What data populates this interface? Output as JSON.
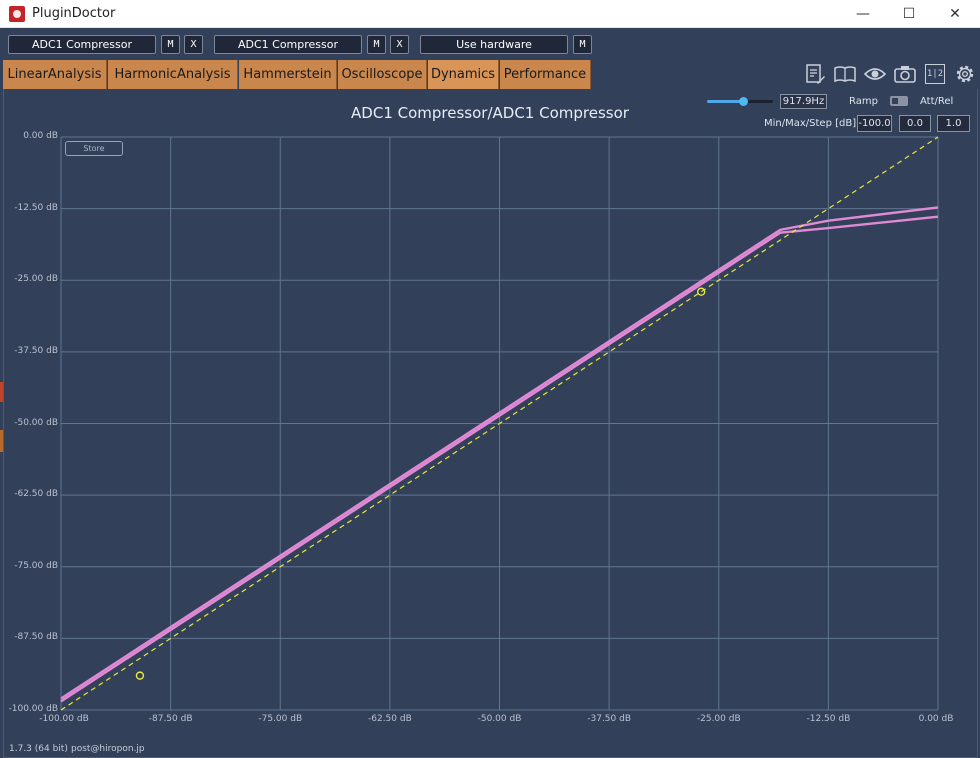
{
  "window": {
    "title": "PluginDoctor",
    "minimize_glyph": "—",
    "maximize_glyph": "☐",
    "close_glyph": "✕"
  },
  "slots": {
    "slot1_name": "ADC1 Compressor",
    "slot1_m": "M",
    "slot1_x": "X",
    "slot2_name": "ADC1 Compressor",
    "slot2_m": "M",
    "slot2_x": "X",
    "slot3_name": "Use hardware",
    "slot3_m": "M"
  },
  "tabs": [
    {
      "label": "LinearAnalysis"
    },
    {
      "label": "HarmonicAnalysis"
    },
    {
      "label": "Hammerstein"
    },
    {
      "label": "Oscilloscope"
    },
    {
      "label": "Dynamics"
    },
    {
      "label": "Performance"
    }
  ],
  "active_tab": "Dynamics",
  "toolbar_icons": [
    "notes-edit-icon",
    "book-icon",
    "eye-icon",
    "camera-icon",
    "split-1-2-icon",
    "gear-icon"
  ],
  "toolbar_split_label": "1|2",
  "controls": {
    "frequency": "917.9Hz",
    "frequency_slider_fraction": 0.55,
    "ramp_label": "Ramp",
    "att_rel_label": "Att/Rel",
    "minmaxstep_label": "Min/Max/Step [dB]:",
    "min": "-100.0",
    "max": "0.0",
    "step": "1.0"
  },
  "store_label": "Store",
  "footer": {
    "version": "1.7.3 (64 bit)",
    "email": "post@hiropon.jp"
  },
  "colors": {
    "background": "#33405a",
    "grid": "#5f7590",
    "curve": "#e08ad6",
    "reference": "#e8e83a",
    "tab": "#c9874e"
  },
  "chart_data": {
    "type": "line",
    "title": "ADC1 Compressor/ADC1 Compressor",
    "xlabel": "",
    "ylabel": "",
    "xlim": [
      -100,
      0
    ],
    "ylim": [
      -100,
      0
    ],
    "x_ticks": [
      "-100.00 dB",
      "-87.50 dB",
      "-75.00 dB",
      "-62.50 dB",
      "-50.00 dB",
      "-37.50 dB",
      "-25.00 dB",
      "-12.50 dB",
      "0.00 dB"
    ],
    "y_ticks": [
      "0.00 dB",
      "-12.50 dB",
      "-25.00 dB",
      "-37.50 dB",
      "-50.00 dB",
      "-62.50 dB",
      "-75.00 dB",
      "-87.50 dB",
      "-100.00 dB"
    ],
    "grid": true,
    "series": [
      {
        "name": "",
        "style": "solid",
        "x": [
          -100,
          -18,
          -12.5,
          0
        ],
        "y": [
          -98,
          -16.2,
          -14.6,
          -12.3
        ]
      },
      {
        "name": "",
        "style": "solid",
        "x": [
          -100,
          -18,
          -12.5,
          0
        ],
        "y": [
          -98.5,
          -16.7,
          -15.9,
          -13.9
        ]
      },
      {
        "name": "",
        "style": "dashed",
        "x": [
          -100,
          0
        ],
        "y": [
          -100,
          0
        ]
      }
    ],
    "markers": [
      {
        "x": -91,
        "y": -94
      },
      {
        "x": -27,
        "y": -27
      }
    ]
  }
}
